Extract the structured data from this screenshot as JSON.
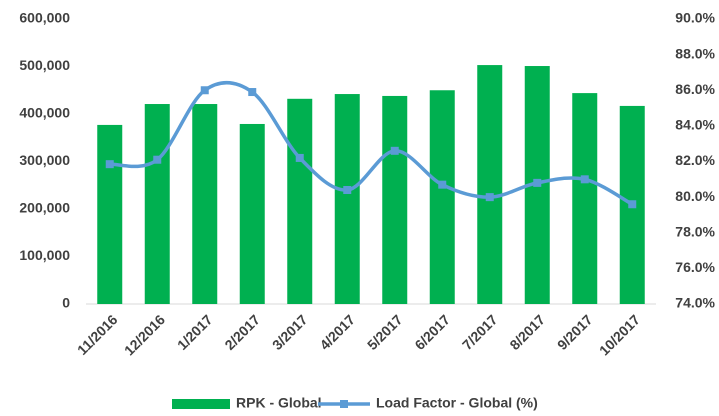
{
  "chart_data": {
    "type": "bar_line",
    "categories": [
      "11/2016",
      "12/2016",
      "1/2017",
      "2/2017",
      "3/2017",
      "4/2017",
      "5/2017",
      "6/2017",
      "7/2017",
      "8/2017",
      "9/2017",
      "10/2017"
    ],
    "series": [
      {
        "name": "RPK - Global",
        "color": "#00b050",
        "type": "bar",
        "values": [
          377000,
          421000,
          421000,
          379000,
          432000,
          442000,
          438000,
          450000,
          503000,
          501000,
          444000,
          417000
        ]
      },
      {
        "name": "Load Factor - Global (%)",
        "color": "#5b9bd5",
        "type": "line",
        "axis": "y2",
        "values": [
          81.85,
          82.1,
          86.0,
          85.9,
          82.2,
          80.4,
          82.6,
          80.7,
          80.0,
          80.8,
          81.0,
          79.6
        ]
      }
    ],
    "ylim": [
      0,
      600000
    ],
    "yticks": [
      {
        "value": 0,
        "label": "0"
      },
      {
        "value": 100000,
        "label": "100,000"
      },
      {
        "value": 200000,
        "label": "200,000"
      },
      {
        "value": 300000,
        "label": "300,000"
      },
      {
        "value": 400000,
        "label": "400,000"
      },
      {
        "value": 500000,
        "label": "500,000"
      },
      {
        "value": 600000,
        "label": "600,000"
      }
    ],
    "y2lim": [
      74,
      90
    ],
    "y2ticks": [
      {
        "value": 74,
        "label": "74.0%"
      },
      {
        "value": 76,
        "label": "76.0%"
      },
      {
        "value": 78,
        "label": "78.0%"
      },
      {
        "value": 80,
        "label": "80.0%"
      },
      {
        "value": 82,
        "label": "82.0%"
      },
      {
        "value": 84,
        "label": "84.0%"
      },
      {
        "value": 86,
        "label": "86.0%"
      },
      {
        "value": 88,
        "label": "88.0%"
      },
      {
        "value": 90,
        "label": "90.0%"
      }
    ],
    "legend": "bottom"
  }
}
